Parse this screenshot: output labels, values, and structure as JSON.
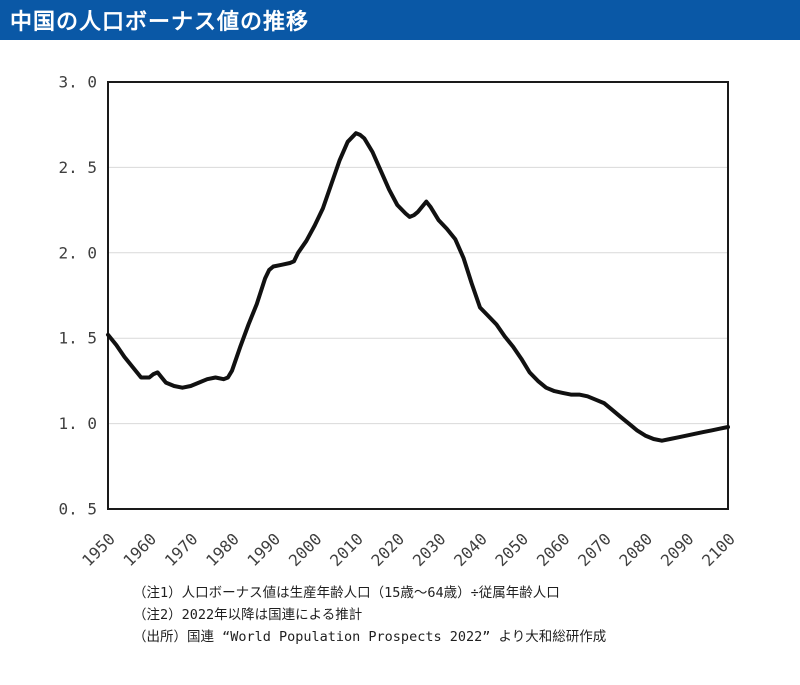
{
  "header": {
    "title": "中国の人口ボーナス値の推移",
    "bg_color": "#0a58a6",
    "text_color": "#ffffff"
  },
  "chart_data": {
    "type": "line",
    "title": "中国の人口ボーナス値の推移",
    "series_name": "人口ボーナス値",
    "xlabel": "",
    "ylabel": "",
    "xlim": [
      1950,
      2100
    ],
    "ylim": [
      0.5,
      3.0
    ],
    "grid": "horizontal",
    "legend": "none",
    "line_color": "#111111",
    "grid_color": "#d9d9d9",
    "axis_color": "#1a1a1a",
    "x_ticks": [
      1950,
      1960,
      1970,
      1980,
      1990,
      2000,
      2010,
      2020,
      2030,
      2040,
      2050,
      2060,
      2070,
      2080,
      2090,
      2100
    ],
    "gridline_values": [
      1.0,
      1.5,
      2.0,
      2.5
    ],
    "y_ticks": [
      {
        "value": 3.0,
        "label": "3. 0"
      },
      {
        "value": 2.5,
        "label": "2. 5"
      },
      {
        "value": 2.0,
        "label": "2. 0"
      },
      {
        "value": 1.5,
        "label": "1. 5"
      },
      {
        "value": 1.0,
        "label": "1. 0"
      },
      {
        "value": 0.5,
        "label": "0. 5"
      }
    ],
    "x": [
      1950,
      1952,
      1954,
      1956,
      1958,
      1960,
      1961,
      1962,
      1963,
      1964,
      1966,
      1968,
      1970,
      1972,
      1974,
      1976,
      1978,
      1979,
      1980,
      1982,
      1984,
      1986,
      1988,
      1989,
      1990,
      1992,
      1994,
      1995,
      1996,
      1998,
      2000,
      2002,
      2004,
      2006,
      2008,
      2010,
      2011,
      2012,
      2014,
      2016,
      2018,
      2020,
      2022,
      2023,
      2024,
      2025,
      2026,
      2027,
      2028,
      2030,
      2032,
      2034,
      2036,
      2038,
      2040,
      2042,
      2044,
      2046,
      2048,
      2050,
      2052,
      2054,
      2056,
      2058,
      2060,
      2062,
      2064,
      2066,
      2068,
      2070,
      2072,
      2074,
      2076,
      2078,
      2080,
      2082,
      2084,
      2086,
      2088,
      2090,
      2092,
      2094,
      2096,
      2098,
      2100
    ],
    "values": [
      1.52,
      1.46,
      1.39,
      1.33,
      1.27,
      1.27,
      1.29,
      1.3,
      1.27,
      1.24,
      1.22,
      1.21,
      1.22,
      1.24,
      1.26,
      1.27,
      1.26,
      1.27,
      1.31,
      1.45,
      1.58,
      1.7,
      1.85,
      1.9,
      1.92,
      1.93,
      1.94,
      1.95,
      2.0,
      2.07,
      2.16,
      2.26,
      2.4,
      2.54,
      2.65,
      2.7,
      2.69,
      2.67,
      2.59,
      2.48,
      2.37,
      2.28,
      2.23,
      2.21,
      2.22,
      2.24,
      2.27,
      2.3,
      2.27,
      2.19,
      2.14,
      2.08,
      1.97,
      1.82,
      1.68,
      1.63,
      1.58,
      1.51,
      1.45,
      1.38,
      1.3,
      1.25,
      1.21,
      1.19,
      1.18,
      1.17,
      1.17,
      1.16,
      1.14,
      1.12,
      1.08,
      1.04,
      1.0,
      0.96,
      0.93,
      0.91,
      0.9,
      0.91,
      0.92,
      0.93,
      0.94,
      0.95,
      0.96,
      0.97,
      0.98
    ]
  },
  "notes": {
    "line1": "（注1）人口ボーナス値は生産年齢人口（15歳～64歳）÷従属年齢人口",
    "line2": "（注2）2022年以降は国連による推計",
    "line3": "（出所）国連 “World Population Prospects 2022” より大和総研作成"
  }
}
